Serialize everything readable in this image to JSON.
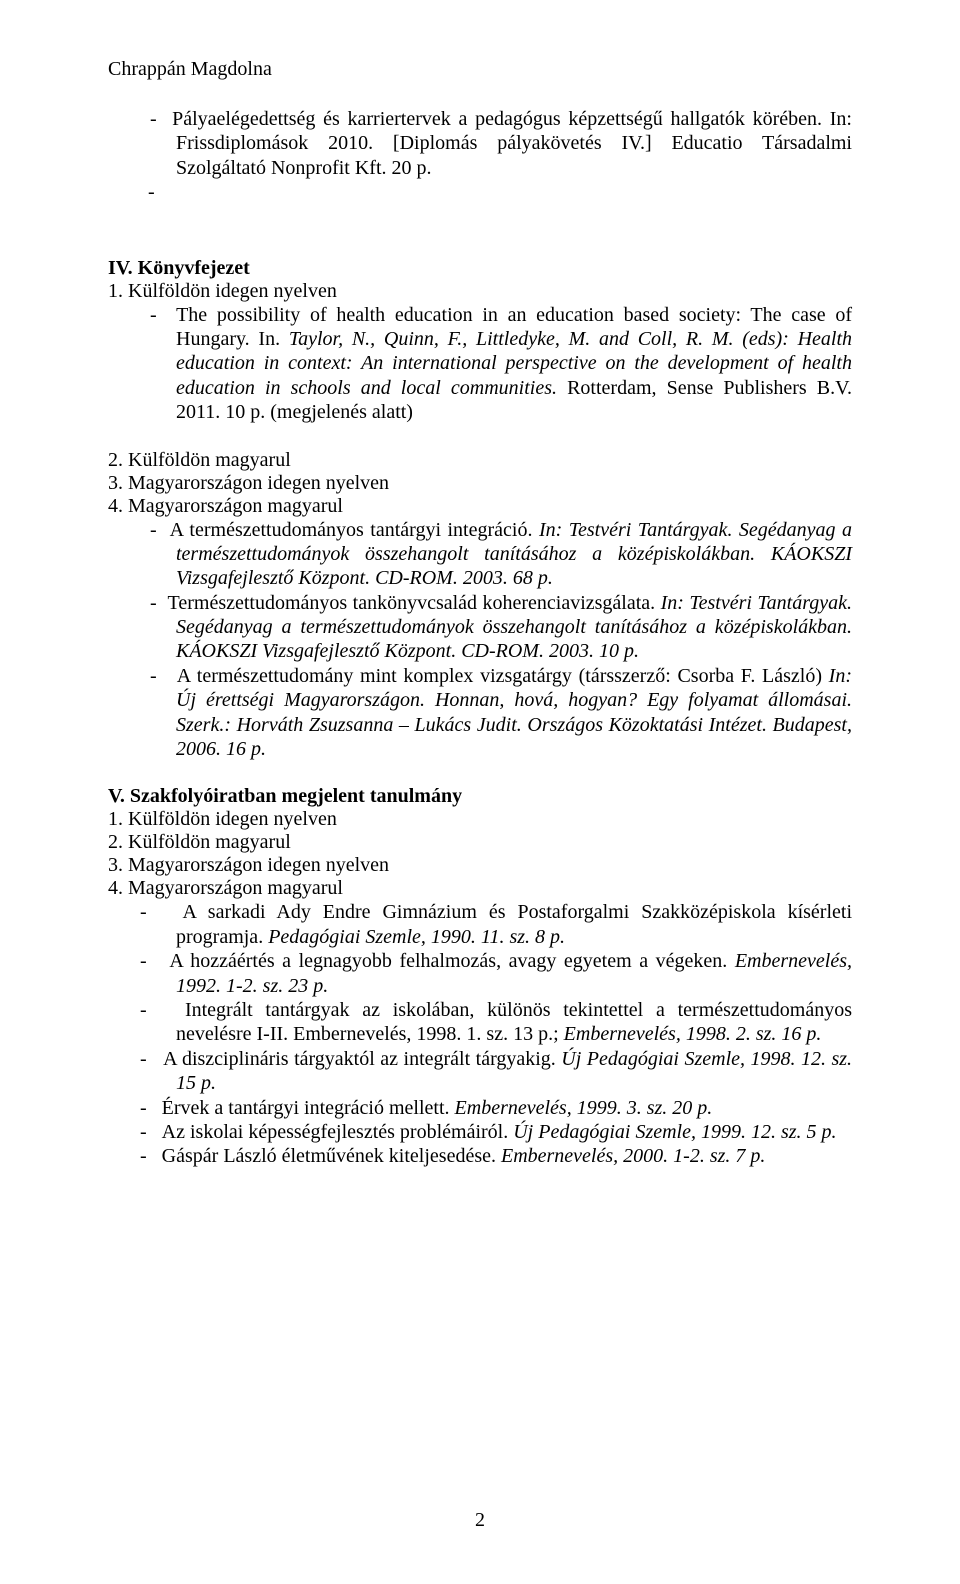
{
  "header": {
    "author_name": "Chrappán Magdolna"
  },
  "top_entry": {
    "bullet": "-",
    "text_a": "Pályaelégedettség és karriertervek a pedagógus képzettségű hallgatók körében. In: Frissdiplomások 2010. [Diplomás pályakövetés IV.] Educatio Társadalmi Szolgáltató Nonprofit Kft. 20 p.",
    "trailing_dash": "-"
  },
  "sectionIV": {
    "title": "IV. Könyvfejezet",
    "line1": "1. Külföldön idegen nyelven",
    "entry1": {
      "bullet": "-",
      "plain_a": "The possibility of health education in an education based society: The case of Hungary. In. ",
      "italic_a": "Taylor, N., Quinn, F., Littledyke, M. and Coll, R. M. (eds): Health education in context: An international perspective on the development of health education in schools and local communities. ",
      "plain_b": "Rotterdam, Sense Publishers B.V. 2011. 10 p. (megjelenés alatt)"
    },
    "line2": "2. Külföldön magyarul",
    "line3": "3. Magyarországon idegen nyelven",
    "line4": "4. Magyarországon magyarul",
    "entry4a": {
      "bullet": "-",
      "plain_a": "A természettudományos tantárgyi integráció. ",
      "italic_a": "In: Testvéri Tantárgyak. Segédanyag a természettudományok összehangolt tanításához a középiskolákban. KÁOKSZI Vizsgafejlesztő Központ. CD-ROM. 2003. 68 p."
    },
    "entry4b": {
      "bullet": "-",
      "plain_a": "Természettudományos tankönyvcsalád koherenciavizsgálata. ",
      "italic_a": "In: Testvéri Tantárgyak. Segédanyag a természettudományok összehangolt tanításához a középiskolákban. KÁOKSZI Vizsgafejlesztő Központ. CD-ROM. 2003. 10 p."
    },
    "entry4c": {
      "bullet": "-",
      "lead_space": "  ",
      "plain_a": "A természettudomány mint komplex vizsgatárgy (társszerző: Csorba F. László) ",
      "italic_a": "In: Új érettségi Magyarországon. Honnan, hová, hogyan? Egy folyamat állomásai. Szerk.: Horváth Zsuzsanna – Lukács Judit. Országos Közoktatási Intézet. Budapest, 2006. 16 p."
    }
  },
  "sectionV": {
    "title": "V. Szakfolyóiratban megjelent tanulmány",
    "line1": "1. Külföldön idegen nyelven",
    "line2": "2. Külföldön magyarul",
    "line3": "3. Magyarországon idegen nyelven",
    "line4": "4. Magyarországon magyarul",
    "e1": {
      "bullet": "-",
      "plain_a": "A sarkadi Ady Endre Gimnázium és Postaforgalmi Szakközépiskola kísérleti programja. ",
      "italic_a": "Pedagógiai Szemle, 1990.  11. sz.  8 p."
    },
    "e2": {
      "bullet": "-",
      "plain_a": "A hozzáértés a legnagyobb felhalmozás, avagy egyetem a végeken. ",
      "italic_a": "Embernevelés, 1992. 1-2. sz.  23 p."
    },
    "e3": {
      "bullet": "-",
      "plain_a": "Integrált tantárgyak az iskolában, különös tekintettel a természettudományos nevelésre I-II.  Embernevelés, 1998. 1. sz. 13 p.; ",
      "italic_a": "Embernevelés, 1998.  2. sz. 16 p."
    },
    "e4": {
      "bullet": "-",
      "plain_a": "A diszciplináris tárgyaktól az integrált tárgyakig. ",
      "italic_a": "Új Pedagógiai Szemle, 1998. 12. sz. 15 p."
    },
    "e5": {
      "bullet": "-",
      "plain_a": "Érvek a tantárgyi integráció mellett. ",
      "italic_a": "Embernevelés, 1999. 3. sz. 20 p."
    },
    "e6": {
      "bullet": "-",
      "plain_a": "Az iskolai képességfejlesztés problémáiról. ",
      "italic_a": "Új Pedagógiai Szemle, 1999.  12. sz. 5 p."
    },
    "e7": {
      "bullet": "-",
      "plain_a": "Gáspár László életművének kiteljesedése.  ",
      "italic_a": "Embernevelés, 2000. 1-2. sz. 7 p."
    }
  },
  "footer": {
    "page_number": "2"
  }
}
